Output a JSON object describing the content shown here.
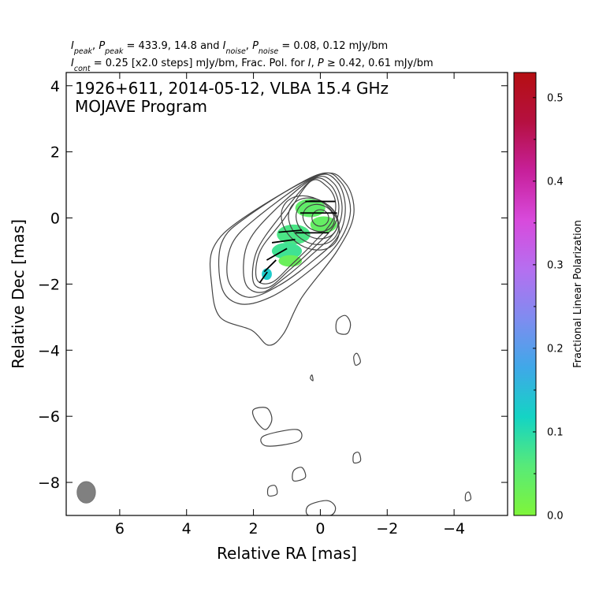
{
  "chart_data": {
    "type": "contour",
    "header": {
      "line1_parts": [
        {
          "t": "I",
          "i": true
        },
        {
          "t": "peak",
          "i": true,
          "sub": true
        },
        {
          "t": ", "
        },
        {
          "t": "P",
          "i": true
        },
        {
          "t": "peak",
          "i": true,
          "sub": true
        },
        {
          "t": " = 433.9, 14.8 and "
        },
        {
          "t": "I",
          "i": true
        },
        {
          "t": "noise",
          "i": true,
          "sub": true
        },
        {
          "t": ", "
        },
        {
          "t": "P",
          "i": true
        },
        {
          "t": "noise",
          "i": true,
          "sub": true
        },
        {
          "t": " = 0.08, 0.12 mJy/bm"
        }
      ],
      "line2_parts": [
        {
          "t": "I",
          "i": true
        },
        {
          "t": "cont",
          "i": true,
          "sub": true
        },
        {
          "t": " = 0.25 [x2.0 steps] mJy/bm, Frac. Pol. for "
        },
        {
          "t": "I",
          "i": true
        },
        {
          "t": ", "
        },
        {
          "t": "P",
          "i": true
        },
        {
          "t": " ≥ 0.42, 0.61 mJy/bm"
        }
      ]
    },
    "title_line1": "1926+611, 2014-05-12, VLBA 15.4 GHz",
    "title_line2": "MOJAVE Program",
    "xlabel": "Relative RA [mas]",
    "ylabel": "Relative Dec [mas]",
    "xlim": [
      7.6,
      -5.6
    ],
    "ylim": [
      -9.0,
      4.4
    ],
    "xticks": [
      6,
      4,
      2,
      0,
      -2,
      -4
    ],
    "yticks": [
      4,
      2,
      0,
      -2,
      -4,
      -6,
      -8
    ],
    "colorbar": {
      "label": "Fractional Linear Polarization",
      "range": [
        0.0,
        0.53
      ],
      "ticks": [
        0.0,
        0.1,
        0.2,
        0.3,
        0.4,
        0.5
      ],
      "tick_labels": [
        "0.0",
        "0.1",
        "0.2",
        "0.3",
        "0.4",
        "0.5"
      ],
      "colors": [
        "#7ff53a",
        "#58ea78",
        "#14d4c4",
        "#3fa8e8",
        "#7f8cf0",
        "#b56ff0",
        "#d84adc",
        "#c7209a",
        "#b51040",
        "#b50f12"
      ]
    },
    "core_contours": [
      {
        "x": 0.0,
        "y": 0.0,
        "rx": 0.25,
        "ry": 0.25,
        "a": 0
      },
      {
        "x": 0.05,
        "y": 0.0,
        "rx": 0.48,
        "ry": 0.4,
        "a": 20
      },
      {
        "x": 0.1,
        "y": -0.05,
        "rx": 0.65,
        "ry": 0.55,
        "a": 30
      },
      {
        "x": 0.2,
        "y": -0.1,
        "rx": 0.8,
        "ry": 0.65,
        "a": 35
      },
      {
        "x": 0.3,
        "y": -0.15,
        "rx": 0.95,
        "ry": 0.72,
        "a": 38
      }
    ],
    "jet_contours": [
      [
        [
          0.3,
          1.1
        ],
        [
          -0.2,
          0.95
        ],
        [
          -0.45,
          0.5
        ],
        [
          -0.35,
          -0.1
        ],
        [
          0.2,
          -0.75
        ],
        [
          0.85,
          -1.4
        ],
        [
          1.45,
          -1.95
        ],
        [
          1.9,
          -1.85
        ],
        [
          1.8,
          -1.0
        ],
        [
          1.1,
          -0.05
        ]
      ],
      [
        [
          0.25,
          1.15
        ],
        [
          -0.3,
          1.0
        ],
        [
          -0.55,
          0.4
        ],
        [
          -0.4,
          -0.25
        ],
        [
          0.25,
          -0.95
        ],
        [
          0.95,
          -1.6
        ],
        [
          1.55,
          -2.1
        ],
        [
          2.0,
          -1.95
        ],
        [
          1.9,
          -1.0
        ],
        [
          1.2,
          0.05
        ]
      ],
      [
        [
          0.2,
          1.2
        ],
        [
          -0.4,
          1.05
        ],
        [
          -0.65,
          0.35
        ],
        [
          -0.45,
          -0.4
        ],
        [
          0.3,
          -1.15
        ],
        [
          1.05,
          -1.8
        ],
        [
          1.75,
          -2.25
        ],
        [
          2.25,
          -1.95
        ],
        [
          2.2,
          -0.85
        ],
        [
          1.5,
          0.1
        ]
      ],
      [
        [
          0.15,
          1.25
        ],
        [
          -0.5,
          1.1
        ],
        [
          -0.75,
          0.3
        ],
        [
          -0.5,
          -0.6
        ],
        [
          0.35,
          -1.4
        ],
        [
          1.25,
          -2.05
        ],
        [
          2.15,
          -2.4
        ],
        [
          2.75,
          -1.9
        ],
        [
          2.65,
          -0.8
        ],
        [
          1.85,
          0.05
        ]
      ],
      [
        [
          0.1,
          1.3
        ],
        [
          -0.6,
          1.1
        ],
        [
          -0.9,
          0.2
        ],
        [
          -0.5,
          -0.8
        ],
        [
          0.45,
          -1.7
        ],
        [
          1.5,
          -2.4
        ],
        [
          2.4,
          -2.6
        ],
        [
          2.95,
          -2.1
        ],
        [
          2.95,
          -0.75
        ],
        [
          2.1,
          0.1
        ]
      ],
      [
        [
          0.05,
          1.3
        ],
        [
          -0.75,
          1.05
        ],
        [
          -1.0,
          0.1
        ],
        [
          -0.5,
          -1.0
        ],
        [
          0.55,
          -2.4
        ],
        [
          1.1,
          -3.5
        ],
        [
          1.55,
          -3.85
        ],
        [
          2.05,
          -3.4
        ],
        [
          3.0,
          -3.0
        ],
        [
          3.25,
          -2.0
        ],
        [
          3.2,
          -0.9
        ],
        [
          2.3,
          0.0
        ]
      ]
    ],
    "islands": [
      [
        [
          -0.5,
          -3.1
        ],
        [
          -0.75,
          -2.95
        ],
        [
          -0.9,
          -3.2
        ],
        [
          -0.8,
          -3.5
        ],
        [
          -0.5,
          -3.45
        ]
      ],
      [
        [
          -1.0,
          -4.2
        ],
        [
          -1.1,
          -4.1
        ],
        [
          -1.2,
          -4.35
        ],
        [
          -1.05,
          -4.45
        ]
      ],
      [
        [
          0.3,
          -4.85
        ],
        [
          0.25,
          -4.75
        ],
        [
          0.22,
          -4.92
        ]
      ],
      [
        [
          2.0,
          -5.8
        ],
        [
          1.6,
          -5.75
        ],
        [
          1.45,
          -6.1
        ],
        [
          1.65,
          -6.4
        ],
        [
          1.95,
          -6.1
        ]
      ],
      [
        [
          1.7,
          -6.6
        ],
        [
          0.7,
          -6.4
        ],
        [
          0.65,
          -6.75
        ],
        [
          1.6,
          -6.9
        ]
      ],
      [
        [
          -1.0,
          -7.15
        ],
        [
          -1.15,
          -7.1
        ],
        [
          -1.2,
          -7.35
        ],
        [
          -1.0,
          -7.4
        ]
      ],
      [
        [
          0.8,
          -7.65
        ],
        [
          0.55,
          -7.55
        ],
        [
          0.45,
          -7.85
        ],
        [
          0.8,
          -7.95
        ]
      ],
      [
        [
          1.55,
          -8.15
        ],
        [
          1.35,
          -8.1
        ],
        [
          1.3,
          -8.35
        ],
        [
          1.55,
          -8.4
        ]
      ],
      [
        [
          0.35,
          -8.7
        ],
        [
          -0.2,
          -8.55
        ],
        [
          -0.45,
          -8.75
        ],
        [
          -0.3,
          -9.0
        ],
        [
          0.35,
          -9.0
        ]
      ],
      [
        [
          -4.35,
          -8.35
        ],
        [
          -4.45,
          -8.3
        ],
        [
          -4.5,
          -8.5
        ],
        [
          -4.35,
          -8.55
        ]
      ]
    ],
    "pol_pixels": [
      {
        "x": 0.3,
        "y": 0.3,
        "w": 0.9,
        "h": 0.55,
        "fp": 0.045
      },
      {
        "x": -0.1,
        "y": -0.2,
        "w": 0.8,
        "h": 0.5,
        "fp": 0.04
      },
      {
        "x": 0.8,
        "y": -0.5,
        "w": 1.0,
        "h": 0.6,
        "fp": 0.07
      },
      {
        "x": 1.0,
        "y": -1.0,
        "w": 0.9,
        "h": 0.5,
        "fp": 0.08
      },
      {
        "x": 0.9,
        "y": -1.3,
        "w": 0.7,
        "h": 0.35,
        "fp": 0.03
      },
      {
        "x": 1.6,
        "y": -1.7,
        "w": 0.3,
        "h": 0.35,
        "fp": 0.13
      }
    ],
    "evpa_ticks": [
      {
        "x": 0.0,
        "y": 0.5,
        "len": 0.9,
        "ang": 0
      },
      {
        "x": 0.05,
        "y": 0.15,
        "len": 1.1,
        "ang": 0
      },
      {
        "x": 0.25,
        "y": -0.45,
        "len": 1.0,
        "ang": 0
      },
      {
        "x": 0.9,
        "y": -0.4,
        "len": 0.7,
        "ang": 5
      },
      {
        "x": 1.1,
        "y": -0.7,
        "len": 0.7,
        "ang": 8
      },
      {
        "x": 1.3,
        "y": -1.1,
        "len": 0.7,
        "ang": 30
      },
      {
        "x": 1.5,
        "y": -1.45,
        "len": 0.5,
        "ang": 45
      },
      {
        "x": 1.7,
        "y": -1.8,
        "len": 0.4,
        "ang": 55
      }
    ],
    "beam": {
      "x": 7.0,
      "y": -8.3,
      "maj": 0.65,
      "min": 0.55,
      "pa": 0
    }
  }
}
